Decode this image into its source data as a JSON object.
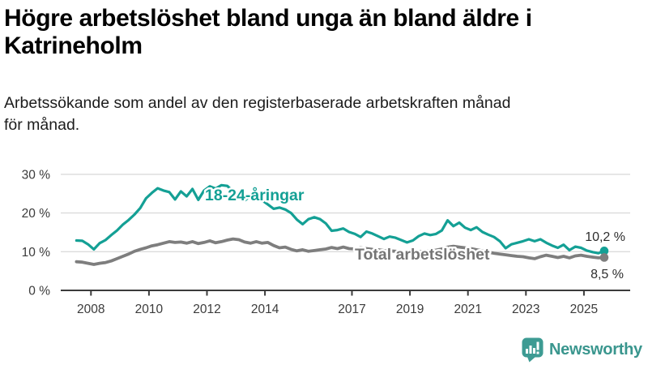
{
  "header": {
    "title_lines": [
      "Högre arbetslöshet bland unga än bland äldre i",
      "Katrineholm"
    ],
    "subtitle_lines": [
      "Arbetssökande som andel av den registerbaserade arbetskraften månad",
      "för månad."
    ]
  },
  "chart_data": {
    "type": "line",
    "title": "Högre arbetslöshet bland unga än bland äldre i Katrineholm",
    "subtitle": "Arbetssökande som andel av den registerbaserade arbetskraften månad för månad.",
    "unit": "%",
    "grid": true,
    "legend_position": "inline",
    "xlim": [
      2007.0,
      2026.6
    ],
    "ylim": [
      0,
      31
    ],
    "x_ticks": [
      2008,
      2010,
      2012,
      2014,
      2017,
      2019,
      2021,
      2023,
      2025
    ],
    "x_tick_labels": [
      "2008",
      "2010",
      "2012",
      "2014",
      "2017",
      "2019",
      "2021",
      "2023",
      "2025"
    ],
    "y_ticks": [
      0,
      10,
      20,
      30
    ],
    "y_tick_labels": [
      "0 %",
      "10 %",
      "20 %",
      "30 %"
    ],
    "x_start": 2007.5,
    "x_step": 0.2,
    "series": [
      {
        "name": "18-24-åringar",
        "color": "#14a095",
        "end_label": "10,2 %",
        "end_value": 10.2,
        "values": [
          12.9,
          12.8,
          11.9,
          10.6,
          12.2,
          13.0,
          14.3,
          15.5,
          17.0,
          18.2,
          19.6,
          21.3,
          23.8,
          25.2,
          26.4,
          25.8,
          25.4,
          23.5,
          25.6,
          24.3,
          26.2,
          23.4,
          25.8,
          26.9,
          26.3,
          27.2,
          27.0,
          25.6,
          24.6,
          23.2,
          24.4,
          23.9,
          23.3,
          22.2,
          21.1,
          21.4,
          20.9,
          20.0,
          18.3,
          17.1,
          18.4,
          18.9,
          18.4,
          17.3,
          15.4,
          15.6,
          16.0,
          15.1,
          14.6,
          13.8,
          15.2,
          14.7,
          14.0,
          13.3,
          13.9,
          13.6,
          13.0,
          12.4,
          12.9,
          14.0,
          14.7,
          14.3,
          14.6,
          15.5,
          18.1,
          16.6,
          17.5,
          16.2,
          15.6,
          16.3,
          15.1,
          14.4,
          13.8,
          12.7,
          10.9,
          11.9,
          12.3,
          12.7,
          13.2,
          12.7,
          13.2,
          12.3,
          11.6,
          11.0,
          11.8,
          10.4,
          11.3,
          11.0,
          10.3,
          9.9,
          9.6,
          10.2
        ]
      },
      {
        "name": "Total arbetslöshet",
        "color": "#7e7e7e",
        "end_label": "8,5 %",
        "end_value": 8.5,
        "values": [
          7.4,
          7.3,
          7.0,
          6.7,
          7.0,
          7.2,
          7.6,
          8.2,
          8.8,
          9.4,
          10.1,
          10.6,
          11.0,
          11.5,
          11.8,
          12.2,
          12.6,
          12.4,
          12.5,
          12.2,
          12.6,
          12.1,
          12.4,
          12.8,
          12.3,
          12.6,
          13.0,
          13.3,
          13.1,
          12.5,
          12.2,
          12.6,
          12.2,
          12.4,
          11.6,
          11.0,
          11.2,
          10.6,
          10.2,
          10.5,
          10.1,
          10.3,
          10.5,
          10.7,
          11.1,
          10.8,
          11.2,
          10.8,
          10.7,
          11.0,
          10.8,
          10.6,
          10.5,
          10.3,
          10.2,
          10.1,
          10.0,
          9.9,
          9.9,
          10.0,
          10.1,
          10.2,
          10.4,
          10.7,
          11.2,
          11.4,
          11.2,
          11.0,
          10.8,
          10.5,
          10.2,
          9.9,
          9.6,
          9.4,
          9.2,
          9.0,
          8.8,
          8.7,
          8.4,
          8.2,
          8.7,
          9.1,
          8.8,
          8.5,
          8.8,
          8.4,
          8.9,
          9.1,
          8.8,
          8.6,
          8.4,
          8.5
        ]
      }
    ]
  },
  "footer": {
    "brand": "Newsworthy"
  },
  "colors": {
    "young_line": "#14a095",
    "total_line": "#7e7e7e",
    "total_label": "#757575",
    "annotation_text": "#2d2d2d",
    "axis": "#3b3b3b",
    "grid": "#dbdbdb",
    "brand_teal": "#3a968e"
  }
}
